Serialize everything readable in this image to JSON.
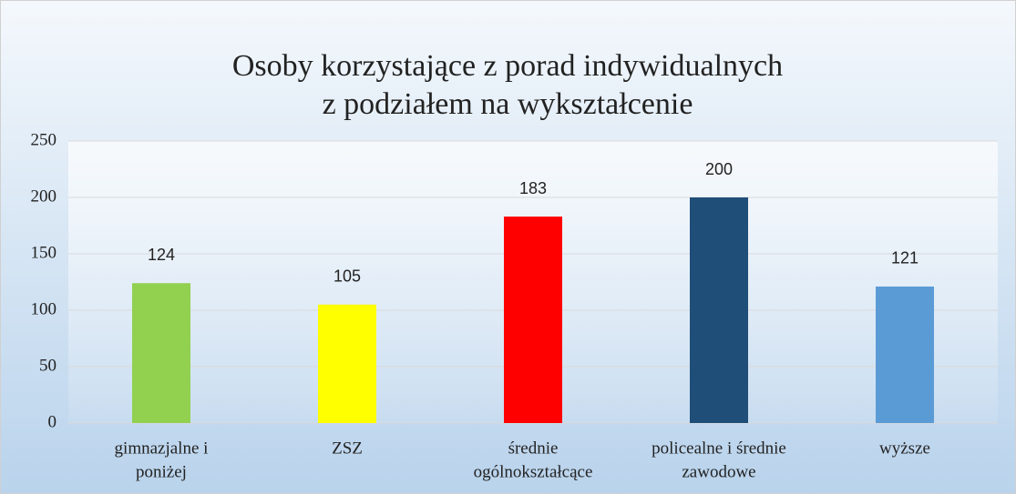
{
  "chart_data": {
    "type": "bar",
    "title": [
      "Osoby korzystające z porad indywidualnych",
      "z podziałem na wykształcenie"
    ],
    "categories": [
      [
        "gimnazjalne i",
        "poniżej"
      ],
      [
        "ZSZ"
      ],
      [
        "średnie",
        "ogólnokształcące"
      ],
      [
        "policealne i średnie",
        "zawodowe"
      ],
      [
        "wyższe"
      ]
    ],
    "values": [
      124,
      105,
      183,
      200,
      121
    ],
    "colors": [
      "#92d050",
      "#ffff00",
      "#ff0000",
      "#1f4e79",
      "#5b9bd5"
    ],
    "ylim": [
      0,
      250
    ],
    "yticks": [
      0,
      50,
      100,
      150,
      200,
      250
    ],
    "grid": true
  }
}
